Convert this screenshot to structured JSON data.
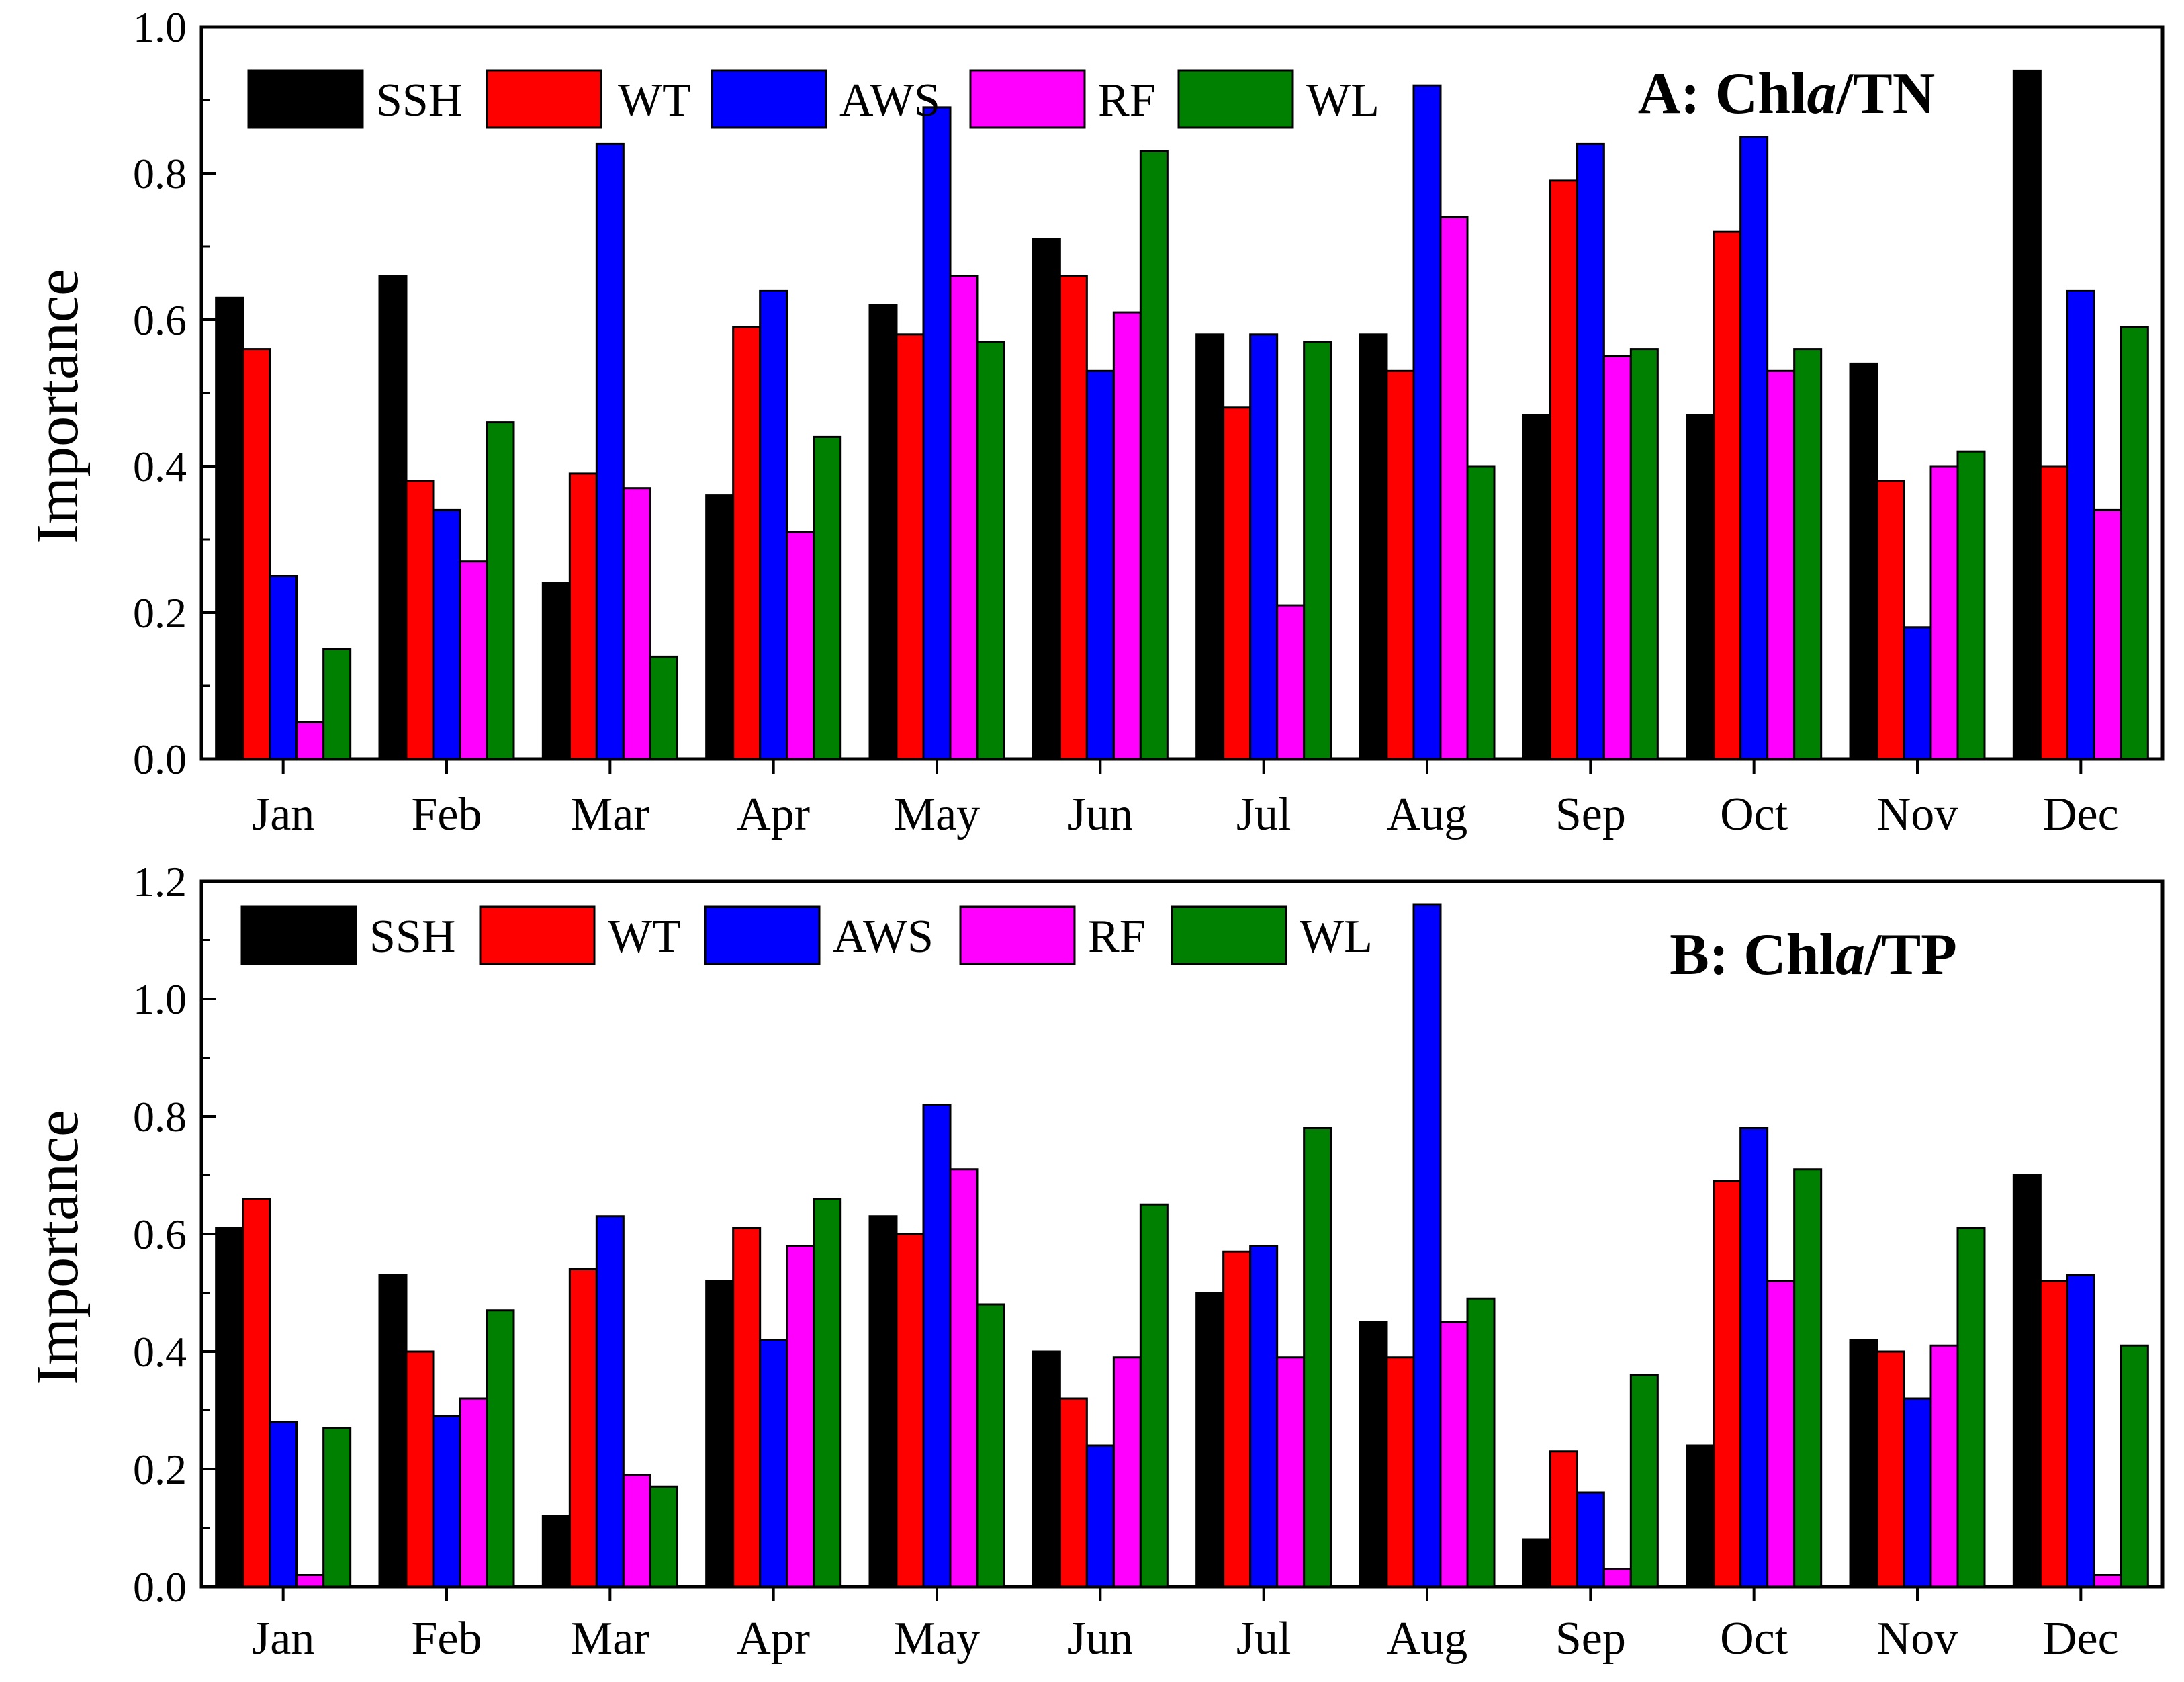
{
  "colors": {
    "SSH": "#000000",
    "WT": "#ff0000",
    "AWS": "#0000ff",
    "RF": "#ff00ff",
    "WL": "#008000"
  },
  "chart_data": [
    {
      "type": "bar",
      "title": "A: Chla/TN",
      "title_parts": [
        "A: Chl",
        "a",
        "/TN"
      ],
      "xlabel": "",
      "ylabel": "Importance",
      "ylim": [
        0,
        1.0
      ],
      "yticks": [
        "0.0",
        "0.2",
        "0.4",
        "0.6",
        "0.8",
        "1.0"
      ],
      "categories": [
        "Jan",
        "Feb",
        "Mar",
        "Apr",
        "May",
        "Jun",
        "Jul",
        "Aug",
        "Sep",
        "Oct",
        "Nov",
        "Dec"
      ],
      "series": [
        {
          "name": "SSH",
          "values": [
            0.63,
            0.66,
            0.24,
            0.36,
            0.62,
            0.71,
            0.58,
            0.58,
            0.47,
            0.47,
            0.54,
            0.94
          ]
        },
        {
          "name": "WT",
          "values": [
            0.56,
            0.38,
            0.39,
            0.59,
            0.58,
            0.66,
            0.48,
            0.53,
            0.79,
            0.72,
            0.38,
            0.4
          ]
        },
        {
          "name": "AWS",
          "values": [
            0.25,
            0.34,
            0.84,
            0.64,
            0.89,
            0.53,
            0.58,
            0.92,
            0.84,
            0.85,
            0.18,
            0.64
          ]
        },
        {
          "name": "RF",
          "values": [
            0.05,
            0.27,
            0.37,
            0.31,
            0.66,
            0.61,
            0.21,
            0.74,
            0.55,
            0.53,
            0.4,
            0.34
          ]
        },
        {
          "name": "WL",
          "values": [
            0.15,
            0.46,
            0.14,
            0.44,
            0.57,
            0.83,
            0.57,
            0.4,
            0.56,
            0.56,
            0.42,
            0.59
          ]
        }
      ]
    },
    {
      "type": "bar",
      "title": "B: Chla/TP",
      "title_parts": [
        "B: Chl",
        "a",
        "/TP"
      ],
      "xlabel": "",
      "ylabel": "Importance",
      "ylim": [
        0,
        1.2
      ],
      "yticks": [
        "0.0",
        "0.2",
        "0.4",
        "0.6",
        "0.8",
        "1.0",
        "1.2"
      ],
      "categories": [
        "Jan",
        "Feb",
        "Mar",
        "Apr",
        "May",
        "Jun",
        "Jul",
        "Aug",
        "Sep",
        "Oct",
        "Nov",
        "Dec"
      ],
      "series": [
        {
          "name": "SSH",
          "values": [
            0.61,
            0.53,
            0.12,
            0.52,
            0.63,
            0.4,
            0.5,
            0.45,
            0.08,
            0.24,
            0.42,
            0.7
          ]
        },
        {
          "name": "WT",
          "values": [
            0.66,
            0.4,
            0.54,
            0.61,
            0.6,
            0.32,
            0.57,
            0.39,
            0.23,
            0.69,
            0.4,
            0.52
          ]
        },
        {
          "name": "AWS",
          "values": [
            0.28,
            0.29,
            0.63,
            0.42,
            0.82,
            0.24,
            0.58,
            1.16,
            0.16,
            0.78,
            0.32,
            0.53
          ]
        },
        {
          "name": "RF",
          "values": [
            0.02,
            0.32,
            0.19,
            0.58,
            0.71,
            0.39,
            0.39,
            0.45,
            0.03,
            0.52,
            0.41,
            0.02
          ]
        },
        {
          "name": "WL",
          "values": [
            0.27,
            0.47,
            0.17,
            0.66,
            0.48,
            0.65,
            0.78,
            0.49,
            0.36,
            0.71,
            0.61,
            0.41
          ]
        }
      ]
    }
  ]
}
